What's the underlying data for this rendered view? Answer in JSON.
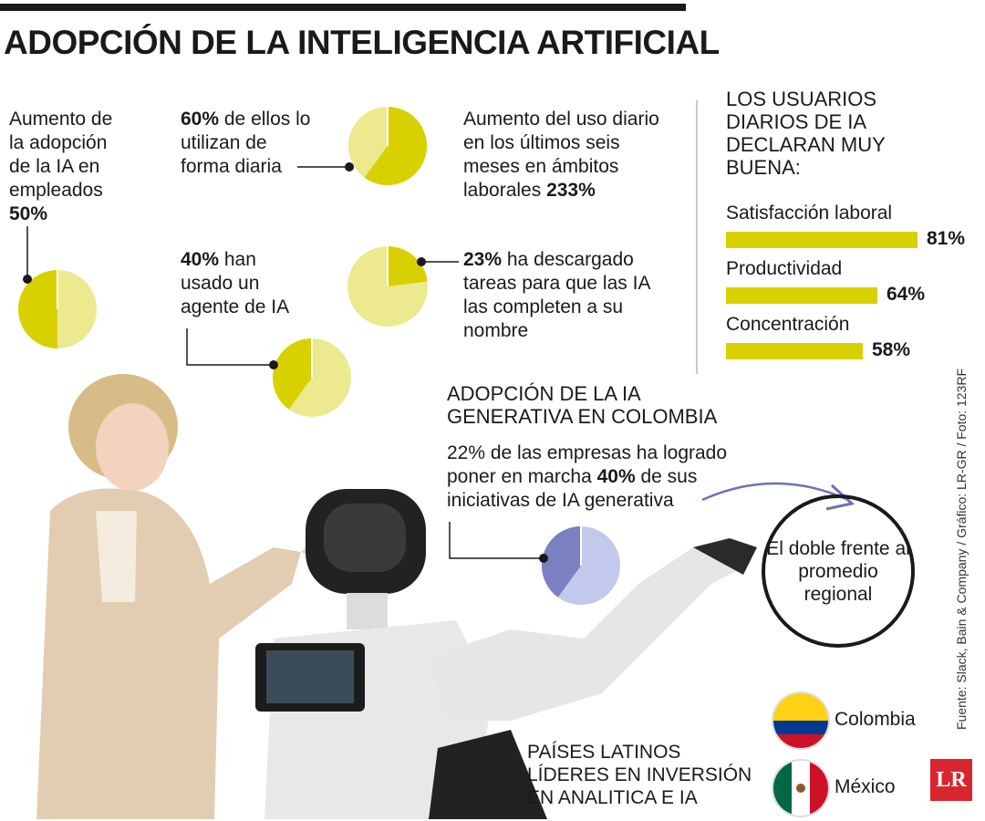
{
  "title": "ADOPCIÓN DE LA INTELIGENCIA ARTIFICIAL",
  "stats": {
    "s1_text": "Aumento de la adopción de la IA en empleados",
    "s1_value": "50%",
    "s2_value": "60%",
    "s2_text": "de ellos lo utilizan de forma diaria",
    "s3_text": "Aumento del uso diario en los últimos seis meses en ámbitos laborales",
    "s3_value": "233%",
    "s4_value": "40%",
    "s4_text": "han usado un agente de IA",
    "s5_value": "23%",
    "s5_text": "ha descargado tareas para que las IA las completen a su nombre"
  },
  "bars_heading": "LOS USUARIOS DIARIOS DE IA DECLARAN MUY BUENA:",
  "colombia": {
    "heading": "ADOPCIÓN DE LA IA GENERATIVA EN COLOMBIA",
    "text_a": "22% de las empresas ha logrado poner en marcha",
    "text_value": "40%",
    "text_b": "de sus iniciativas de IA generativa",
    "note": "El doble frente al promedio regional"
  },
  "leaders": {
    "heading": "PAÍSES LATINOS LÍDERES EN INVERSIÓN EN ANALITICA E IA",
    "countries": [
      "Colombia",
      "México"
    ]
  },
  "source": "Fuente: Slack, Bain & Company / Gráfico: LR-GR / Foto: 123RF",
  "logo": "LR",
  "colors": {
    "accent": "#d9d000",
    "accent_light": "#ece98f",
    "purple": "#7b80c0",
    "purple_light": "#c3c9ec"
  },
  "chart_data": [
    {
      "type": "pie",
      "labels": [
        "50%",
        ""
      ],
      "values": [
        50,
        50
      ]
    },
    {
      "type": "pie",
      "labels": [
        "60%",
        ""
      ],
      "values": [
        60,
        40
      ]
    },
    {
      "type": "pie",
      "labels": [
        "40%",
        ""
      ],
      "values": [
        40,
        60
      ]
    },
    {
      "type": "pie",
      "labels": [
        "23%",
        ""
      ],
      "values": [
        23,
        77
      ]
    },
    {
      "type": "pie",
      "labels": [
        "40%",
        ""
      ],
      "values": [
        40,
        60
      ]
    },
    {
      "type": "bar",
      "categories": [
        "Satisfacción laboral",
        "Productividad",
        "Concentración"
      ],
      "values": [
        81,
        64,
        58
      ],
      "value_labels": [
        "81%",
        "64%",
        "58%"
      ]
    }
  ]
}
